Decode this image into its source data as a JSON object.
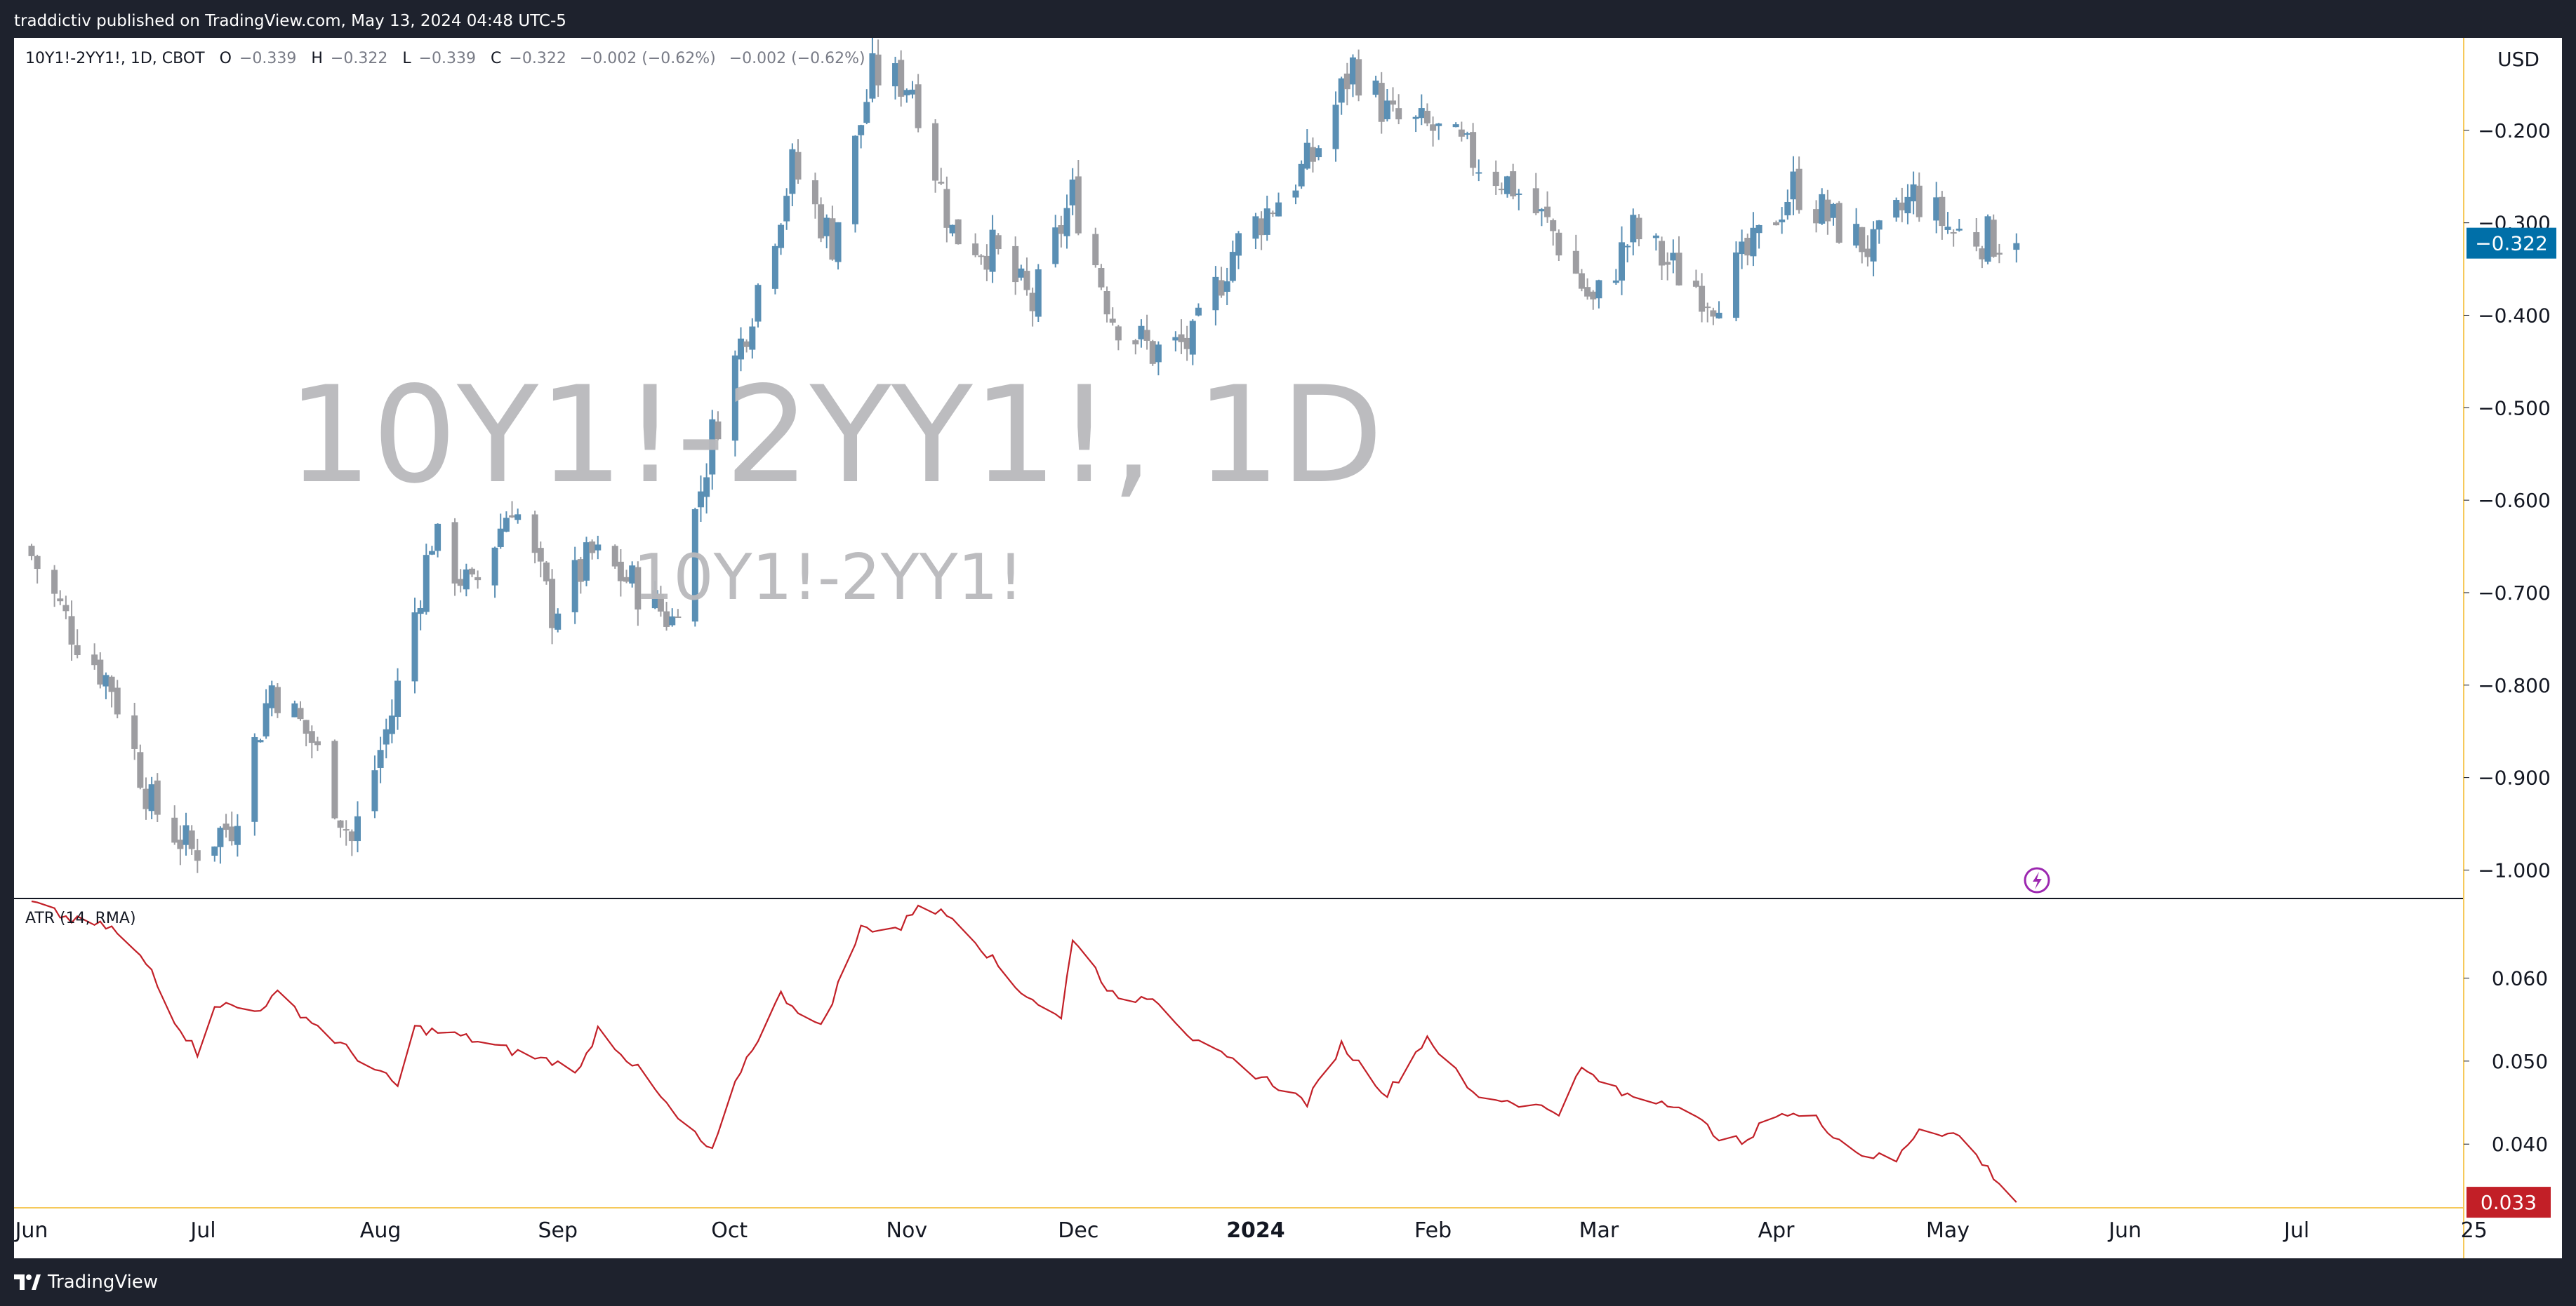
{
  "header": {
    "published_text": "traddictiv published on TradingView.com, May 13, 2024 04:48 UTC-5"
  },
  "footer": {
    "brand_label": "TradingView",
    "brand_icon": "tradingview-logo-icon"
  },
  "colors": {
    "up": "#5a8fb4",
    "down": "#9d9da1",
    "atr_line": "#c21f27",
    "price_badge": "#006fa8",
    "atr_badge": "#c21f27",
    "border_accent": "#f6c95a",
    "watermark": "#b9b9bc"
  },
  "legend": {
    "symbol": "10Y1!-2YY1!, 1D, CBOT",
    "o_label": "O",
    "o_value": "−0.339",
    "h_label": "H",
    "h_value": "−0.322",
    "l_label": "L",
    "l_value": "−0.339",
    "c_label": "C",
    "c_value": "−0.322",
    "change": "−0.002 (−0.62%)",
    "change2": "−0.002 (−0.62%)"
  },
  "watermark": {
    "main": "10Y1!-2YY1!, 1D",
    "sub": "10Y1!-2YY1!"
  },
  "price_scale": {
    "currency": "USD",
    "last_price_label": "−0.322"
  },
  "atr_pane": {
    "label": "ATR (14, RMA)",
    "last_value_label": "0.033"
  },
  "chart_data": [
    {
      "type": "candlestick",
      "title": "10Y1!-2YY1!, 1D, CBOT",
      "ylim": [
        -1.03,
        -0.1
      ],
      "yticks": [
        -0.2,
        -0.3,
        -0.4,
        -0.5,
        -0.6,
        -0.7,
        -0.8,
        -0.9,
        -1.0
      ],
      "ytick_labels": [
        "−0.200",
        "−0.300",
        "−0.400",
        "−0.500",
        "−0.600",
        "−0.700",
        "−0.800",
        "−0.900",
        "−1.000"
      ],
      "x_ticks": [
        "Jun",
        "Jul",
        "Aug",
        "Sep",
        "Oct",
        "Nov",
        "Dec",
        "2024",
        "Feb",
        "Mar",
        "Apr",
        "May",
        "Jun",
        "Jul",
        "25"
      ],
      "last": -0.322,
      "anchors": [
        {
          "date": "2023-06-01",
          "close": -0.66
        },
        {
          "date": "2023-06-08",
          "close": -0.74
        },
        {
          "date": "2023-06-15",
          "close": -0.8
        },
        {
          "date": "2023-06-22",
          "close": -0.93
        },
        {
          "date": "2023-06-29",
          "close": -0.98
        },
        {
          "date": "2023-07-06",
          "close": -0.95
        },
        {
          "date": "2023-07-13",
          "close": -0.8
        },
        {
          "date": "2023-07-20",
          "close": -0.86
        },
        {
          "date": "2023-07-27",
          "close": -0.97
        },
        {
          "date": "2023-08-03",
          "close": -0.83
        },
        {
          "date": "2023-08-10",
          "close": -0.64
        },
        {
          "date": "2023-08-17",
          "close": -0.7
        },
        {
          "date": "2023-08-24",
          "close": -0.6
        },
        {
          "date": "2023-08-31",
          "close": -0.72
        },
        {
          "date": "2023-09-07",
          "close": -0.66
        },
        {
          "date": "2023-09-14",
          "close": -0.69
        },
        {
          "date": "2023-09-21",
          "close": -0.73
        },
        {
          "date": "2023-09-28",
          "close": -0.53
        },
        {
          "date": "2023-10-05",
          "close": -0.39
        },
        {
          "date": "2023-10-12",
          "close": -0.24
        },
        {
          "date": "2023-10-19",
          "close": -0.32
        },
        {
          "date": "2023-10-26",
          "close": -0.14
        },
        {
          "date": "2023-11-02",
          "close": -0.15
        },
        {
          "date": "2023-11-09",
          "close": -0.31
        },
        {
          "date": "2023-11-16",
          "close": -0.33
        },
        {
          "date": "2023-11-23",
          "close": -0.39
        },
        {
          "date": "2023-11-30",
          "close": -0.27
        },
        {
          "date": "2023-12-07",
          "close": -0.4
        },
        {
          "date": "2023-12-14",
          "close": -0.44
        },
        {
          "date": "2023-12-21",
          "close": -0.43
        },
        {
          "date": "2023-12-28",
          "close": -0.33
        },
        {
          "date": "2024-01-04",
          "close": -0.28
        },
        {
          "date": "2024-01-11",
          "close": -0.23
        },
        {
          "date": "2024-01-18",
          "close": -0.13
        },
        {
          "date": "2024-01-25",
          "close": -0.19
        },
        {
          "date": "2024-02-01",
          "close": -0.2
        },
        {
          "date": "2024-02-08",
          "close": -0.23
        },
        {
          "date": "2024-02-15",
          "close": -0.26
        },
        {
          "date": "2024-02-22",
          "close": -0.31
        },
        {
          "date": "2024-02-29",
          "close": -0.39
        },
        {
          "date": "2024-03-07",
          "close": -0.31
        },
        {
          "date": "2024-03-14",
          "close": -0.35
        },
        {
          "date": "2024-03-21",
          "close": -0.38
        },
        {
          "date": "2024-03-28",
          "close": -0.33
        },
        {
          "date": "2024-04-04",
          "close": -0.26
        },
        {
          "date": "2024-04-11",
          "close": -0.3
        },
        {
          "date": "2024-04-18",
          "close": -0.33
        },
        {
          "date": "2024-04-25",
          "close": -0.27
        },
        {
          "date": "2024-05-02",
          "close": -0.31
        },
        {
          "date": "2024-05-13",
          "close": -0.322
        }
      ]
    },
    {
      "type": "line",
      "title": "ATR (14, RMA)",
      "ylim": [
        0.0325,
        0.0695
      ],
      "yticks": [
        0.06,
        0.05,
        0.04
      ],
      "ytick_labels": [
        "0.060",
        "0.050",
        "0.040"
      ],
      "last": 0.033,
      "anchors": [
        {
          "date": "2023-06-01",
          "value": 0.069
        },
        {
          "date": "2023-06-08",
          "value": 0.067
        },
        {
          "date": "2023-06-15",
          "value": 0.066
        },
        {
          "date": "2023-06-22",
          "value": 0.061
        },
        {
          "date": "2023-06-26",
          "value": 0.055
        },
        {
          "date": "2023-06-30",
          "value": 0.051
        },
        {
          "date": "2023-07-03",
          "value": 0.057
        },
        {
          "date": "2023-07-10",
          "value": 0.056
        },
        {
          "date": "2023-07-14",
          "value": 0.058
        },
        {
          "date": "2023-07-25",
          "value": 0.052
        },
        {
          "date": "2023-08-04",
          "value": 0.047
        },
        {
          "date": "2023-08-07",
          "value": 0.054
        },
        {
          "date": "2023-08-15",
          "value": 0.053
        },
        {
          "date": "2023-08-25",
          "value": 0.051
        },
        {
          "date": "2023-09-05",
          "value": 0.049
        },
        {
          "date": "2023-09-08",
          "value": 0.054
        },
        {
          "date": "2023-09-15",
          "value": 0.049
        },
        {
          "date": "2023-09-22",
          "value": 0.043
        },
        {
          "date": "2023-09-28",
          "value": 0.039
        },
        {
          "date": "2023-10-03",
          "value": 0.049
        },
        {
          "date": "2023-10-10",
          "value": 0.058
        },
        {
          "date": "2023-10-17",
          "value": 0.054
        },
        {
          "date": "2023-10-24",
          "value": 0.066
        },
        {
          "date": "2023-10-31",
          "value": 0.066
        },
        {
          "date": "2023-11-03",
          "value": 0.069
        },
        {
          "date": "2023-11-10",
          "value": 0.067
        },
        {
          "date": "2023-11-20",
          "value": 0.059
        },
        {
          "date": "2023-11-28",
          "value": 0.055
        },
        {
          "date": "2023-11-30",
          "value": 0.065
        },
        {
          "date": "2023-12-08",
          "value": 0.057
        },
        {
          "date": "2023-12-14",
          "value": 0.058
        },
        {
          "date": "2023-12-22",
          "value": 0.052
        },
        {
          "date": "2024-01-05",
          "value": 0.047
        },
        {
          "date": "2024-01-10",
          "value": 0.045
        },
        {
          "date": "2024-01-16",
          "value": 0.052
        },
        {
          "date": "2024-01-24",
          "value": 0.046
        },
        {
          "date": "2024-01-31",
          "value": 0.053
        },
        {
          "date": "2024-02-08",
          "value": 0.046
        },
        {
          "date": "2024-02-16",
          "value": 0.045
        },
        {
          "date": "2024-02-23",
          "value": 0.044
        },
        {
          "date": "2024-02-27",
          "value": 0.049
        },
        {
          "date": "2024-03-05",
          "value": 0.046
        },
        {
          "date": "2024-03-14",
          "value": 0.045
        },
        {
          "date": "2024-03-22",
          "value": 0.041
        },
        {
          "date": "2024-03-27",
          "value": 0.04
        },
        {
          "date": "2024-03-31",
          "value": 0.044
        },
        {
          "date": "2024-04-08",
          "value": 0.043
        },
        {
          "date": "2024-04-15",
          "value": 0.039
        },
        {
          "date": "2024-04-22",
          "value": 0.038
        },
        {
          "date": "2024-04-26",
          "value": 0.042
        },
        {
          "date": "2024-05-03",
          "value": 0.041
        },
        {
          "date": "2024-05-08",
          "value": 0.037
        },
        {
          "date": "2024-05-13",
          "value": 0.033
        }
      ]
    }
  ]
}
